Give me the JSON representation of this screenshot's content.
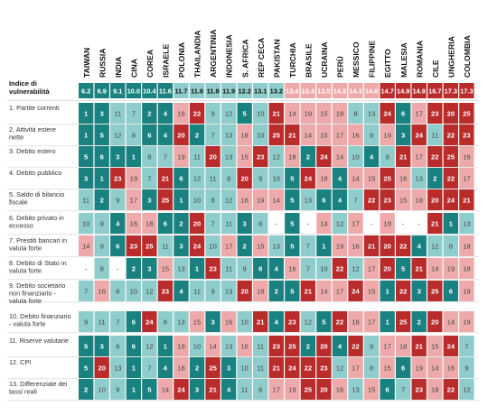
{
  "chart_data": {
    "type": "heatmap",
    "countries": [
      "TAIWAN",
      "RUSSIA",
      "INDIA",
      "CINA",
      "COREA",
      "ISRAELE",
      "POLONIA",
      "THAILANDIA",
      "ARGENTINIA",
      "INDONESIA",
      "S. AFRICA",
      "REP CECA",
      "PAKISTAN",
      "TURCHIA",
      "BRASILE",
      "UCRAINA",
      "PERÙ",
      "MESSICO",
      "FILIPPINE",
      "EGITTO",
      "MALESIA",
      "ROMANIA",
      "CILE",
      "UNGHERIA",
      "COLOMBIA"
    ],
    "index_label": "Indice di vulnerabilità",
    "index_values": [
      "6.2",
      "6.9",
      "9.1",
      "10.0",
      "10.4",
      "11.6",
      "11.7",
      "11.8",
      "11.8",
      "11.9",
      "12.2",
      "13.1",
      "13.2",
      "13.4",
      "13.4",
      "13.5",
      "14.3",
      "14.3",
      "14.6",
      "14.7",
      "14.9",
      "14.9",
      "16.7",
      "17.3",
      "17.3"
    ],
    "rows": [
      {
        "label": "1. Partite correnti",
        "values": [
          "1",
          "3",
          "11",
          "7",
          "2",
          "4",
          "16",
          "22",
          "9",
          "12",
          "5",
          "10",
          "21",
          "14",
          "19",
          "15",
          "18",
          "8",
          "13",
          "24",
          "6",
          "17",
          "23",
          "20",
          "25"
        ]
      },
      {
        "label": "2. Attività estere nette",
        "values": [
          "1",
          "5",
          "12",
          "8",
          "6",
          "4",
          "20",
          "2",
          "7",
          "13",
          "18",
          "10",
          "25",
          "21",
          "14",
          "15",
          "17",
          "16",
          "9",
          "19",
          "3",
          "24",
          "11",
          "22",
          "23"
        ]
      },
      {
        "label": "3. Debito estero",
        "values": [
          "5",
          "6",
          "3",
          "1",
          "8",
          "7",
          "19",
          "11",
          "20",
          "13",
          "15",
          "23",
          "12",
          "18",
          "2",
          "24",
          "14",
          "10",
          "4",
          "9",
          "21",
          "17",
          "22",
          "25",
          "16"
        ]
      },
      {
        "label": "4. Debito pubblico",
        "values": [
          "3",
          "1",
          "23",
          "19",
          "7",
          "21",
          "6",
          "12",
          "11",
          "8",
          "20",
          "9",
          "10",
          "5",
          "24",
          "18",
          "4",
          "14",
          "15",
          "25",
          "16",
          "13",
          "2",
          "22",
          "17"
        ]
      },
      {
        "label": "5. Saldo di bilancio fiscale",
        "values": [
          "11",
          "2",
          "9",
          "17",
          "3",
          "25",
          "1",
          "10",
          "8",
          "12",
          "16",
          "19",
          "14",
          "5",
          "13",
          "6",
          "4",
          "7",
          "22",
          "23",
          "15",
          "18",
          "20",
          "24",
          "21"
        ]
      },
      {
        "label": "6. Debito privato in eccesso",
        "values": [
          "10",
          "9",
          "4",
          "16",
          "18",
          "6",
          "2",
          "20",
          "7",
          "11",
          "3",
          "8",
          "-",
          "5",
          "-",
          "14",
          "12",
          "17",
          "-",
          "19",
          "-",
          "-",
          "21",
          "1",
          "13"
        ]
      },
      {
        "label": "7. Prestiti bancari in valuta forte",
        "values": [
          "14",
          "9",
          "6",
          "23",
          "25",
          "11",
          "3",
          "24",
          "10",
          "17",
          "2",
          "15",
          "13",
          "5",
          "7",
          "1",
          "19",
          "16",
          "21",
          "20",
          "22",
          "4",
          "12",
          "8",
          "18"
        ]
      },
      {
        "label": "8. Debito di Stato in valuta forte",
        "values": [
          "-",
          "8",
          "-",
          "2",
          "3",
          "15",
          "13",
          "1",
          "23",
          "11",
          "9",
          "6",
          "4",
          "16",
          "7",
          "10",
          "22",
          "12",
          "17",
          "20",
          "5",
          "21",
          "14",
          "19",
          "18"
        ]
      },
      {
        "label": "9. Debito societario non finanziario - valuta forte",
        "values": [
          "7",
          "16",
          "8",
          "10",
          "12",
          "23",
          "4",
          "11",
          "9",
          "13",
          "20",
          "18",
          "2",
          "5",
          "21",
          "14",
          "17",
          "24",
          "15",
          "1",
          "22",
          "3",
          "25",
          "6",
          "19"
        ]
      },
      {
        "label": "10. Debito finanziario - valuta forte",
        "values": [
          "9",
          "11",
          "7",
          "6",
          "24",
          "8",
          "13",
          "15",
          "3",
          "16",
          "10",
          "21",
          "4",
          "23",
          "12",
          "5",
          "22",
          "18",
          "17",
          "1",
          "25",
          "2",
          "20",
          "14",
          "19"
        ]
      },
      {
        "label": "11. Riserve valutarie",
        "values": [
          "5",
          "3",
          "8",
          "6",
          "12",
          "1",
          "19",
          "10",
          "14",
          "13",
          "16",
          "11",
          "23",
          "25",
          "2",
          "20",
          "4",
          "22",
          "9",
          "17",
          "18",
          "21",
          "15",
          "24",
          "7"
        ]
      },
      {
        "label": "12. CPI",
        "values": [
          "5",
          "20",
          "13",
          "1",
          "7",
          "4",
          "18",
          "2",
          "25",
          "3",
          "10",
          "11",
          "21",
          "24",
          "22",
          "23",
          "12",
          "17",
          "8",
          "15",
          "6",
          "19",
          "14",
          "16",
          "9"
        ]
      },
      {
        "label": "13. Differenziale dei tassi reali",
        "values": [
          "2",
          "10",
          "9",
          "1",
          "5",
          "14",
          "24",
          "3",
          "21",
          "4",
          "11",
          "8",
          "17",
          "19",
          "25",
          "20",
          "16",
          "13",
          "15",
          "6",
          "7",
          "23",
          "18",
          "22",
          "12"
        ]
      }
    ],
    "colors": {
      "dark_teal": "#1a8181",
      "light_teal": "#8fcccc",
      "light_pink": "#eeaaaa",
      "dark_red": "#ba2b2b",
      "white": "#ffffff",
      "label_text": "#333333",
      "header_text": "#111111",
      "cell_text": "#ffffff",
      "cell_text_dark": "#444444",
      "row_line": "#d0d0d0"
    }
  }
}
